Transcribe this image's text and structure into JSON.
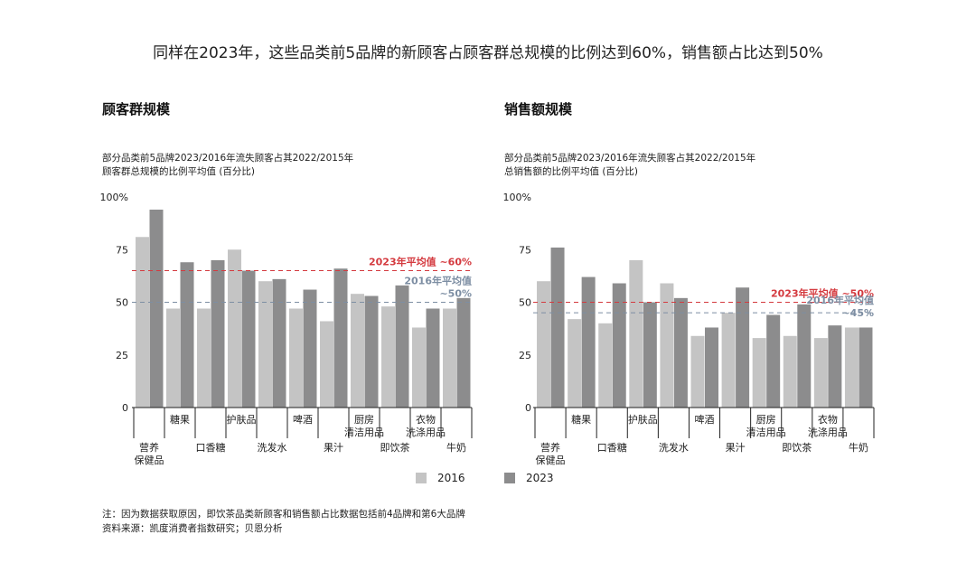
{
  "headline": "同样在2023年，这些品类前5品牌的新顾客占顾客群总规模的比例达到60%，销售额占比达到50%",
  "colors": {
    "y2016": "#c4c4c4",
    "y2023": "#8c8c8d",
    "red": "#d43a3f",
    "blue": "#7d8ea3"
  },
  "legend": {
    "s2016": "2016",
    "s2023": "2023"
  },
  "note": "注：因为数据获取原因，即饮茶品类新顾客和销售额占比数据包括前4品牌和第6大品牌",
  "source": "资料来源：凯度消费者指数研究；贝恩分析",
  "chart_data": [
    {
      "type": "bar",
      "title": "顾客群规模",
      "subtitle_line1": "部分品类前5品牌2023/2016年流失顾客占其2022/2015年",
      "subtitle_line2": "顾客群总规模的比例平均值 (百分比)",
      "ylim": [
        0,
        100
      ],
      "yticks": [
        "0",
        "25",
        "50",
        "75",
        "100%"
      ],
      "categories": [
        "营养保健品",
        "糖果",
        "口香糖",
        "护肤品",
        "洗发水",
        "啤酒",
        "果汁",
        "厨房清洁用品",
        "即饮茶",
        "衣物洗涤用品",
        "牛奶"
      ],
      "cat_labels_lower": [
        [
          "营养",
          "保健品"
        ],
        [],
        [
          "口香糖"
        ],
        [],
        [
          "洗发水"
        ],
        [],
        [
          "果汁"
        ],
        [],
        [
          "即饮茶"
        ],
        [],
        [
          "牛奶"
        ]
      ],
      "cat_labels_upper": [
        [],
        [
          "糖果"
        ],
        [],
        [
          "护肤品"
        ],
        [],
        [
          "啤酒"
        ],
        [],
        [
          "厨房",
          "清洁用品"
        ],
        [],
        [
          "衣物",
          "洗涤用品"
        ],
        []
      ],
      "series": [
        {
          "name": "2016",
          "values": [
            81,
            47,
            47,
            75,
            60,
            47,
            41,
            54,
            48,
            38,
            47
          ]
        },
        {
          "name": "2023",
          "values": [
            94,
            69,
            70,
            65,
            61,
            56,
            66,
            53,
            58,
            47,
            52
          ]
        }
      ],
      "ref_lines": [
        {
          "value": 65,
          "label": "2023年平均值 ~60%",
          "color": "red"
        },
        {
          "value": 50,
          "label_line1": "2016年平均值",
          "label_line2": "~50%",
          "color": "blue"
        }
      ]
    },
    {
      "type": "bar",
      "title": "销售额规模",
      "subtitle_line1": "部分品类前5品牌2023/2016年流失顾客占其2022/2015年",
      "subtitle_line2": "总销售额的比例平均值 (百分比)",
      "ylim": [
        0,
        100
      ],
      "yticks": [
        "0",
        "25",
        "50",
        "75",
        "100%"
      ],
      "categories": [
        "营养保健品",
        "糖果",
        "口香糖",
        "护肤品",
        "洗发水",
        "啤酒",
        "果汁",
        "厨房清洁用品",
        "即饮茶",
        "衣物洗涤用品",
        "牛奶"
      ],
      "cat_labels_lower": [
        [
          "营养",
          "保健品"
        ],
        [],
        [
          "口香糖"
        ],
        [],
        [
          "洗发水"
        ],
        [],
        [
          "果汁"
        ],
        [],
        [
          "即饮茶"
        ],
        [],
        [
          "牛奶"
        ]
      ],
      "cat_labels_upper": [
        [],
        [
          "糖果"
        ],
        [],
        [
          "护肤品"
        ],
        [],
        [
          "啤酒"
        ],
        [],
        [
          "厨房",
          "清洁用品"
        ],
        [],
        [
          "衣物",
          "洗涤用品"
        ],
        []
      ],
      "series": [
        {
          "name": "2016",
          "values": [
            60,
            42,
            40,
            70,
            59,
            34,
            45,
            33,
            34,
            33,
            38
          ]
        },
        {
          "name": "2023",
          "values": [
            76,
            62,
            59,
            50,
            52,
            38,
            57,
            44,
            49,
            39,
            38
          ]
        }
      ],
      "ref_lines": [
        {
          "value": 50,
          "label": "2023年平均值 ~50%",
          "color": "red"
        },
        {
          "value": 45,
          "label_line1": "2016年平均值",
          "label_line2": "~45%",
          "color": "blue"
        }
      ]
    }
  ]
}
